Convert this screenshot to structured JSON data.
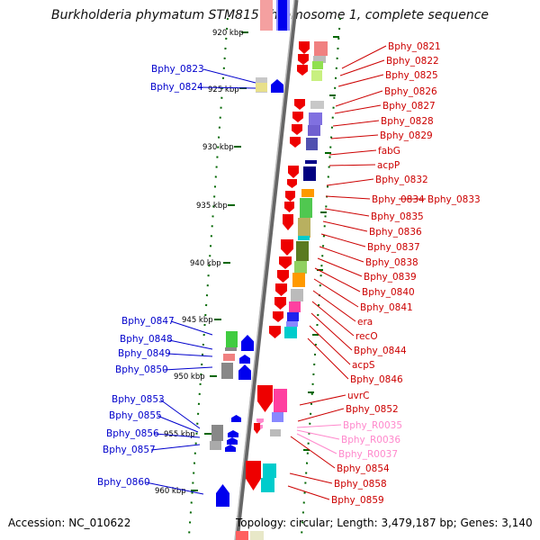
{
  "title": "Burkholderia phymatum STM815 chromosome 1, complete sequence",
  "accession_label": "Accession: NC_010622",
  "topology_label": "Topology: circular; Length: 3,479,187 bp; Genes: 3,140",
  "colors": {
    "left_label": "#0000cc",
    "right_label": "#cc0000",
    "rna_label": "#ff88cc",
    "ruler": "#006600",
    "backbone": "#888888"
  },
  "kbp_ticks": [
    "920 kbp",
    "925 kbp",
    "930 kbp",
    "935 kbp",
    "940 kbp",
    "945 kbp",
    "950 kbp",
    "955 kbp",
    "960 kbp"
  ],
  "left_genes": [
    "Bphy_0823",
    "Bphy_0824",
    "Bphy_0847",
    "Bphy_0848",
    "Bphy_0849",
    "Bphy_0850",
    "Bphy_0853",
    "Bphy_0855",
    "Bphy_0856",
    "Bphy_0857",
    "Bphy_0860"
  ],
  "right_genes": [
    "Bphy_0821",
    "Bphy_0822",
    "Bphy_0825",
    "Bphy_0826",
    "Bphy_0827",
    "Bphy_0828",
    "Bphy_0829",
    "fabG",
    "acpP",
    "Bphy_0832",
    "Bphy_0834",
    "Bphy_0833",
    "Bphy_0835",
    "Bphy_0836",
    "Bphy_0837",
    "Bphy_0838",
    "Bphy_0839",
    "Bphy_0840",
    "Bphy_0841",
    "era",
    "recO",
    "Bphy_0844",
    "acpS",
    "Bphy_0846",
    "uvrC",
    "Bphy_0852",
    "Bphy_R0035",
    "Bphy_R0036",
    "Bphy_R0037",
    "Bphy_0854",
    "Bphy_0858",
    "Bphy_0859"
  ]
}
